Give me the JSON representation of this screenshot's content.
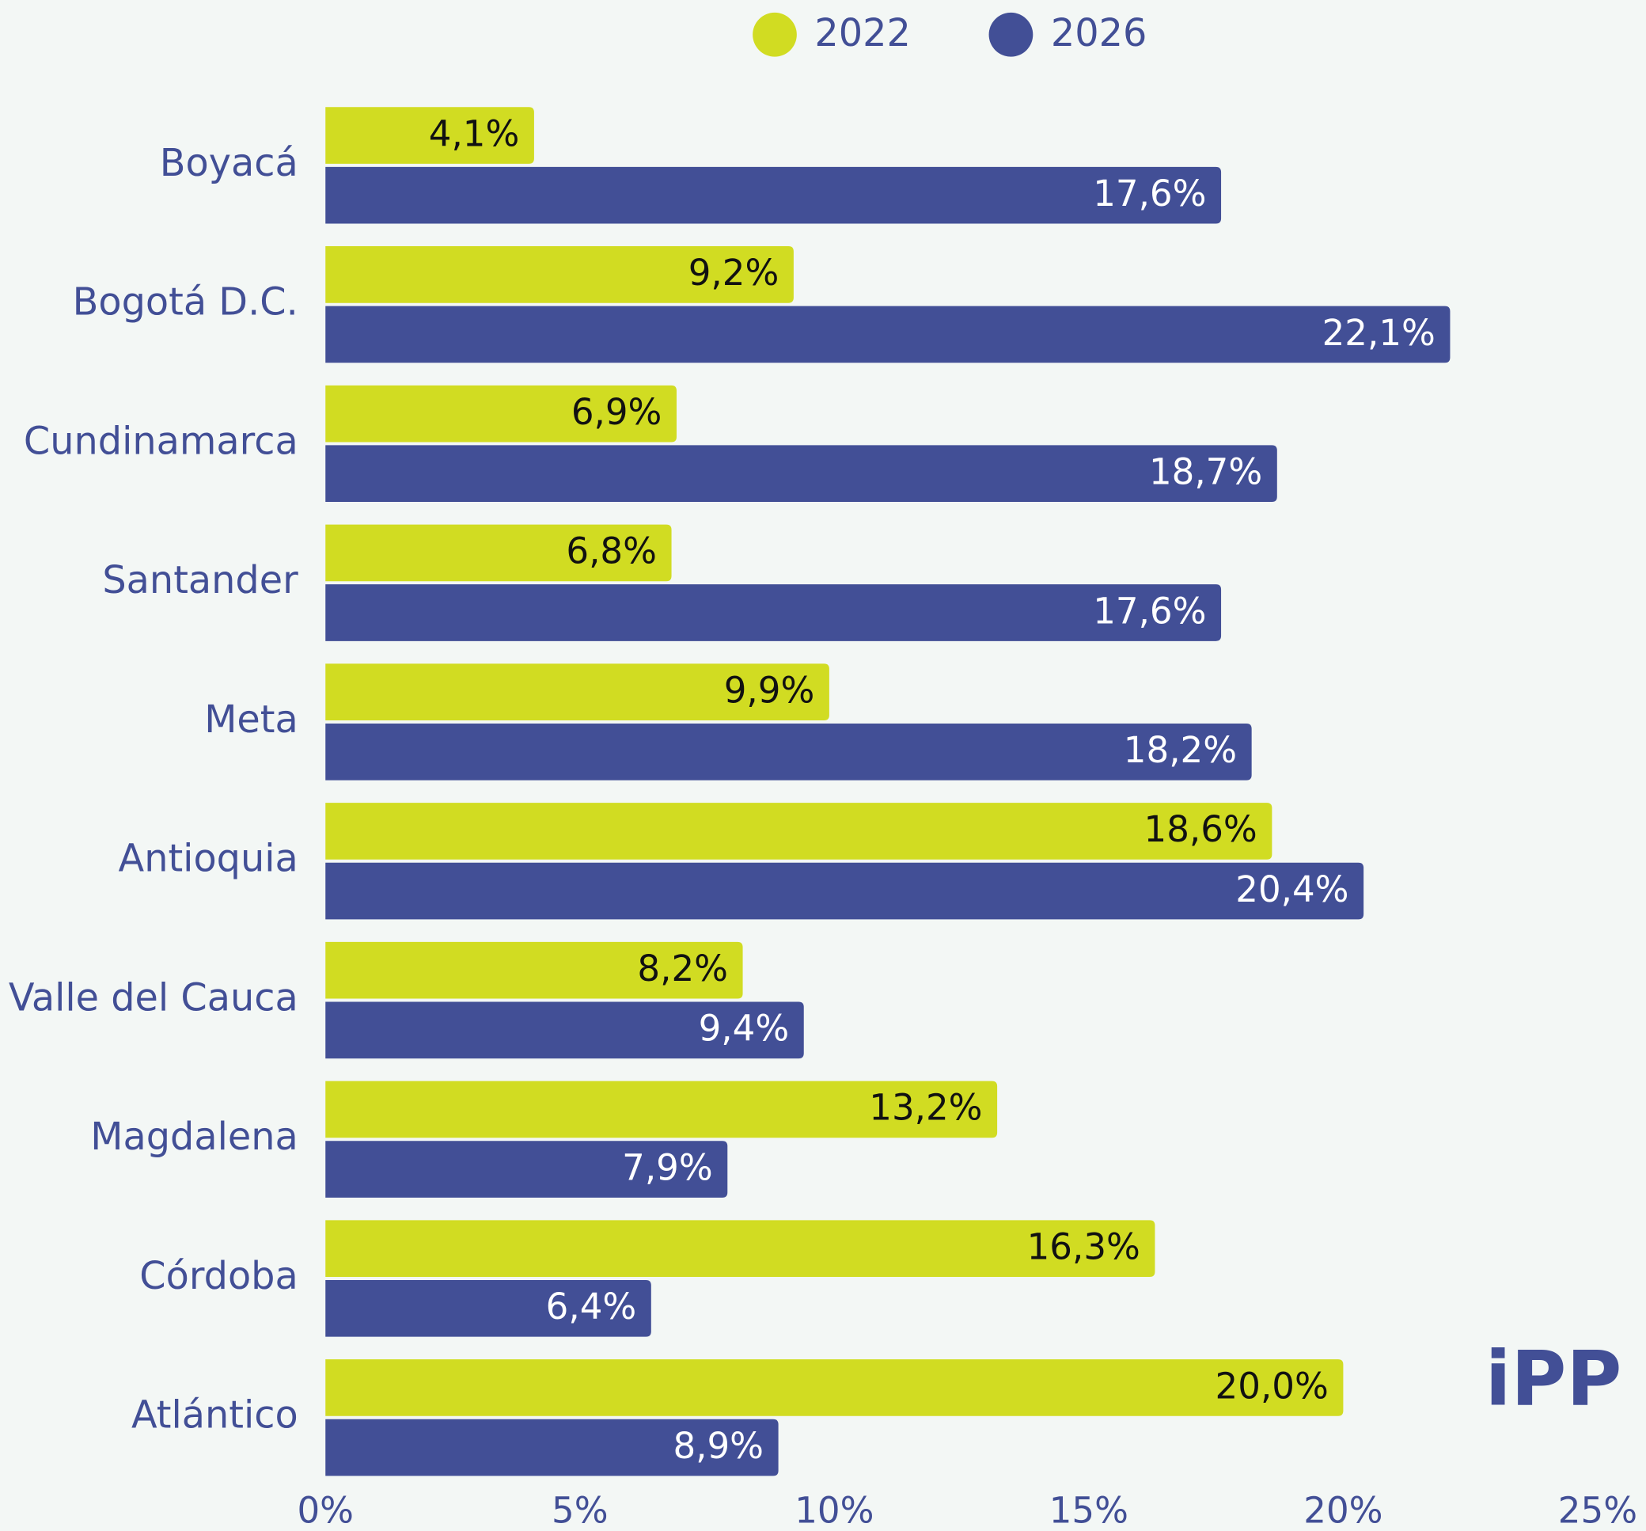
{
  "chart_data": {
    "type": "hbar",
    "categories": [
      "Boyacá",
      "Bogotá D.C.",
      "Cundinamarca",
      "Santander",
      "Meta",
      "Antioquia",
      "Valle del Cauca",
      "Magdalena",
      "Córdoba",
      "Atlántico"
    ],
    "series": [
      {
        "name": "2022",
        "color": "#d1dc22",
        "values": [
          4.1,
          9.2,
          6.9,
          6.8,
          9.9,
          18.6,
          8.2,
          13.2,
          16.3,
          20.0
        ],
        "value_labels": [
          "4,1%",
          "9,2%",
          "6,9%",
          "6,8%",
          "9,9%",
          "18,6%",
          "8,2%",
          "13,2%",
          "16,3%",
          "20,0%"
        ]
      },
      {
        "name": "2026",
        "color": "#424f96",
        "values": [
          17.6,
          22.1,
          18.7,
          17.6,
          18.2,
          20.4,
          9.4,
          7.9,
          6.4,
          8.9
        ],
        "value_labels": [
          "17,6%",
          "22,1%",
          "18,7%",
          "17,6%",
          "18,2%",
          "20,4%",
          "9,4%",
          "7,9%",
          "6,4%",
          "8,9%"
        ]
      }
    ],
    "xlim": [
      0,
      25
    ],
    "xticks": [
      {
        "value": 0,
        "label": "0%"
      },
      {
        "value": 5,
        "label": "5%"
      },
      {
        "value": 10,
        "label": "10%"
      },
      {
        "value": 15,
        "label": "15%"
      },
      {
        "value": 20,
        "label": "20%"
      },
      {
        "value": 25,
        "label": "25%"
      }
    ],
    "legend": "top",
    "logo": "iPP"
  }
}
